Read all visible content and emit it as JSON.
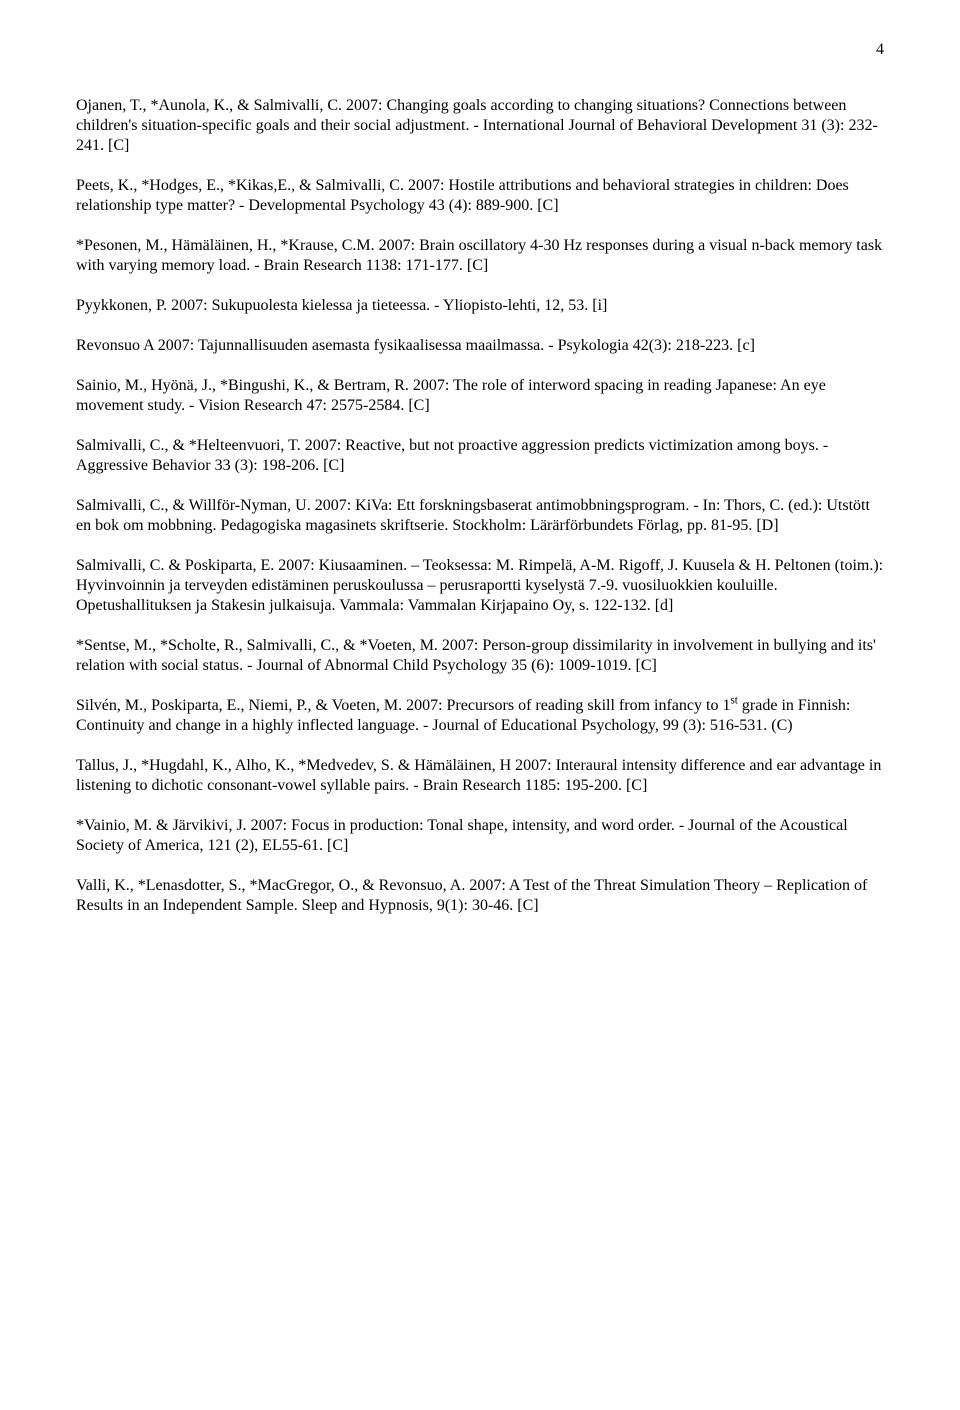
{
  "page_number": "4",
  "font": {
    "family": "Times New Roman",
    "size_pt": 12,
    "color": "#000000"
  },
  "background_color": "#ffffff",
  "entries": [
    "Ojanen, T., *Aunola, K., & Salmivalli, C. 2007: Changing goals according to changing situations? Connections between children's situation-specific goals and their social adjustment. - International Journal of Behavioral Development 31 (3): 232-241. [C]",
    "Peets, K., *Hodges, E., *Kikas,E., & Salmivalli, C. 2007: Hostile attributions and behavioral strategies in children: Does relationship type matter? - Developmental Psychology 43 (4): 889-900. [C]",
    "*Pesonen, M., Hämäläinen, H., *Krause, C.M. 2007: Brain oscillatory 4-30 Hz responses during a visual n-back memory task with varying memory load. - Brain Research 1138: 171-177. [C]",
    "Pyykkonen, P. 2007: Sukupuolesta kielessa ja tieteessa. - Yliopisto-lehti, 12, 53. [i]",
    "Revonsuo A 2007: Tajunnallisuuden asemasta fysikaalisessa maailmassa. - Psykologia 42(3): 218-223. [c]",
    "Sainio, M., Hyönä, J., *Bingushi, K., & Bertram, R. 2007: The role of interword spacing in reading Japanese: An eye movement study. - Vision Research 47: 2575-2584. [C]",
    "Salmivalli, C., & *Helteenvuori, T. 2007: Reactive, but not proactive aggression predicts victimization among boys. - Aggressive Behavior 33 (3): 198-206. [C]",
    "Salmivalli, C., & Willför-Nyman, U. 2007: KiVa: Ett forskningsbaserat antimobbningsprogram. - In: Thors, C. (ed.): Utstött en bok om mobbning. Pedagogiska magasinets skriftserie. Stockholm: Lärärförbundets Förlag, pp. 81-95. [D]",
    "Salmivalli, C. & Poskiparta, E. 2007:  Kiusaaminen. – Teoksessa: M. Rimpelä, A-M. Rigoff, J. Kuusela & H. Peltonen (toim.): Hyvinvoinnin ja terveyden edistäminen peruskoulussa – perusraportti kyselystä 7.-9. vuosiluokkien  kouluille. Opetushallituksen ja Stakesin julkaisuja. Vammala: Vammalan Kirjapaino Oy, s. 122-132. [d]",
    "*Sentse, M., *Scholte, R., Salmivalli, C., & *Voeten, M. 2007: Person-group dissimilarity in involvement in bullying and its' relation with social status. - Journal of Abnormal Child Psychology 35 (6): 1009-1019. [C]",
    "Silvén, M., Poskiparta, E., Niemi, P., & Voeten, M. 2007: Precursors of reading skill from infancy to 1<sup>st</sup> grade in Finnish: Continuity and change in a highly inflected language. - Journal of Educational Psychology, 99 (3): 516-531. (C)",
    "Tallus, J., *Hugdahl, K., Alho, K., *Medvedev, S. & Hämäläinen, H 2007: Interaural intensity difference and ear advantage in listening to dichotic consonant-vowel syllable pairs. - Brain Research 1185: 195-200. [C]",
    "*Vainio, M. & Järvikivi, J. 2007: Focus in production: Tonal shape, intensity, and word order. - Journal of the Acoustical Society of America, 121 (2), EL55-61. [C]",
    "Valli, K., *Lenasdotter, S., *MacGregor, O., & Revonsuo, A. 2007: A Test of the Threat Simulation Theory – Replication of Results in an Independent Sample.  Sleep and Hypnosis, 9(1): 30-46. [C]"
  ]
}
